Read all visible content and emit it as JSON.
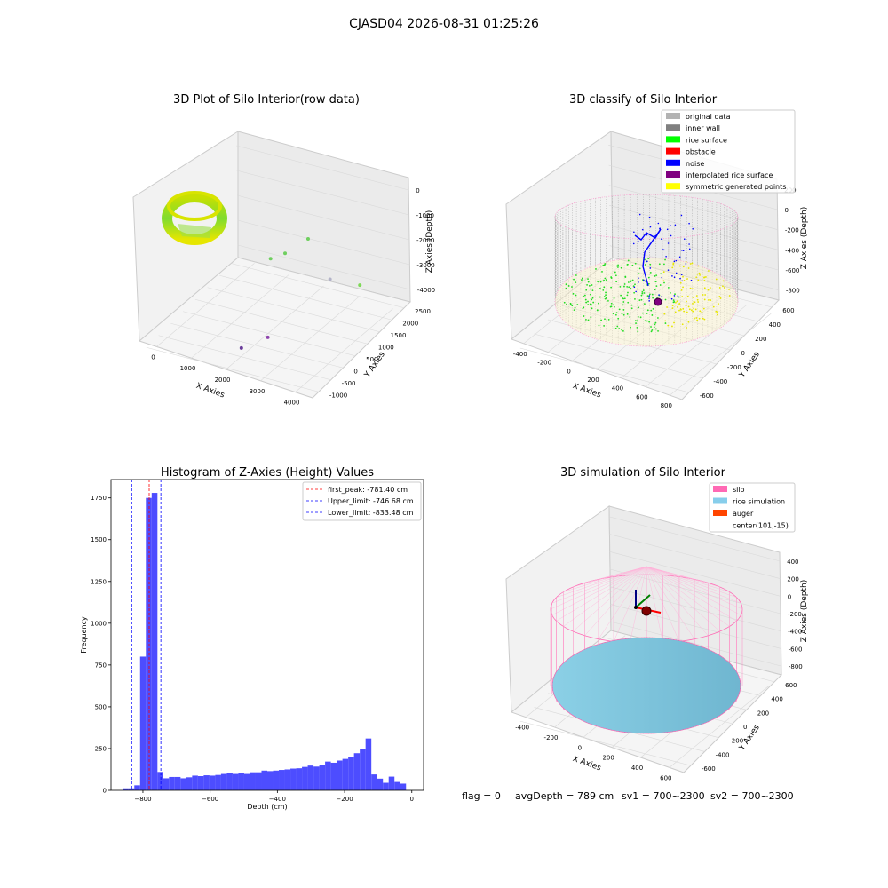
{
  "figure_title": "CJASD04 2026-08-31 01:25:26",
  "status_line": {
    "flag": "flag = 0",
    "avg_depth": "avgDepth = 789 cm",
    "sv1": "sv1 = 700~2300",
    "sv2": "sv2 = 700~2300"
  },
  "colors": {
    "bar": "#4d4dff",
    "first_peak": "#ff0000",
    "limits": "#0000ff",
    "original_data": "#b3b3b3",
    "inner_wall": "#808080",
    "rice_surface": "#00ff00",
    "obstacle": "#ff0000",
    "noise": "#0000ff",
    "interpolated_rice_surface": "#800080",
    "symmetric_generated_points": "#ffff00",
    "silo": "#ff69b4",
    "rice_simulation": "#87ceeb",
    "auger": "#ff4500"
  },
  "chart_data": [
    {
      "type": "scatter",
      "title": "3D Plot of Silo Interior(row data)",
      "xlabel": "X Axies",
      "ylabel": "Y Axies",
      "zlabel": "Z Axies (Depth)",
      "xticks": [
        "0",
        "1000",
        "2000",
        "3000",
        "4000"
      ],
      "yticks": [
        "-1000",
        "-500",
        "0",
        "500",
        "1000",
        "1500",
        "2000",
        "2500"
      ],
      "zticks": [
        "0",
        "-1000",
        "-2000",
        "-3000",
        "-4000"
      ],
      "xlim": [
        -700,
        4400
      ],
      "ylim": [
        -1100,
        2700
      ],
      "zlim": [
        -4500,
        300
      ],
      "points": [
        {
          "x": 1800,
          "y": 700,
          "z": -2000,
          "c": "#6fcf5f"
        },
        {
          "x": 2300,
          "y": 1500,
          "z": -1800,
          "c": "#6fcf5f"
        },
        {
          "x": 2000,
          "y": 1000,
          "z": -2000,
          "c": "#6fcf5f"
        },
        {
          "x": 3400,
          "y": 900,
          "z": -2300,
          "c": "#b3b3c8"
        },
        {
          "x": 3900,
          "y": 1400,
          "z": -2800,
          "c": "#7ed957"
        },
        {
          "x": 2400,
          "y": -200,
          "z": -3900,
          "c": "#8e44ad"
        },
        {
          "x": 2000,
          "y": -700,
          "z": -4000,
          "c": "#6a3d9a"
        }
      ]
    },
    {
      "type": "scatter",
      "title": "3D classify of Silo Interior",
      "xlabel": "X Axies",
      "ylabel": "Y Axies",
      "zlabel": "Z Axies (Depth)",
      "xticks": [
        "-400",
        "-200",
        "0",
        "200",
        "400",
        "600",
        "800"
      ],
      "yticks": [
        "-600",
        "-400",
        "-200",
        "0",
        "200",
        "400",
        "600"
      ],
      "zticks": [
        "200",
        "0",
        "-200",
        "-400",
        "-600",
        "-800"
      ],
      "legend": [
        {
          "label": "original data",
          "color": "#b3b3b3"
        },
        {
          "label": "inner wall",
          "color": "#808080"
        },
        {
          "label": "rice surface",
          "color": "#00ff00"
        },
        {
          "label": "obstacle",
          "color": "#ff0000"
        },
        {
          "label": "noise",
          "color": "#0000ff"
        },
        {
          "label": "interpolated rice surface",
          "color": "#800080"
        },
        {
          "label": "symmetric generated points",
          "color": "#ffff00"
        }
      ],
      "legend_position": "top-right"
    },
    {
      "type": "bar",
      "title": "Histogram of Z-Axies (Height) Values",
      "xlabel": "Depth (cm)",
      "ylabel": "Frequency",
      "xlim": [
        -895,
        35
      ],
      "ylim": [
        0,
        1860
      ],
      "xticks": [
        -800,
        -600,
        -400,
        -200,
        0
      ],
      "yticks": [
        0,
        250,
        500,
        750,
        1000,
        1250,
        1500,
        1750
      ],
      "bin_start": -860,
      "bin_width": 17.2,
      "values": [
        12,
        12,
        30,
        800,
        1750,
        1780,
        110,
        72,
        80,
        80,
        72,
        78,
        88,
        85,
        90,
        88,
        92,
        98,
        102,
        98,
        102,
        98,
        108,
        108,
        118,
        115,
        118,
        122,
        125,
        130,
        132,
        140,
        148,
        142,
        150,
        172,
        165,
        178,
        188,
        200,
        222,
        245,
        310,
        95,
        70,
        45,
        82,
        50,
        40
      ],
      "vlines": [
        {
          "label": "first_peak: -781.40 cm",
          "x": -781.4,
          "color": "#ff0000"
        },
        {
          "label": "Upper_limit: -746.68 cm",
          "x": -746.68,
          "color": "#0000ff"
        },
        {
          "label": "Lower_limit: -833.48 cm",
          "x": -833.48,
          "color": "#0000ff"
        }
      ],
      "legend_position": "top-right"
    },
    {
      "type": "scatter",
      "title": "3D simulation of Silo Interior",
      "xlabel": "X Axies",
      "ylabel": "Y Axies",
      "zlabel": "Z Axies (Depth)",
      "xticks": [
        "-400",
        "-200",
        "0",
        "200",
        "400",
        "600"
      ],
      "yticks": [
        "-600",
        "-400",
        "-200",
        "0",
        "200",
        "400",
        "600"
      ],
      "zticks": [
        "400",
        "200",
        "0",
        "-200",
        "-400",
        "-600",
        "-800"
      ],
      "legend": [
        {
          "label": "silo",
          "color": "#ff69b4"
        },
        {
          "label": "rice simulation",
          "color": "#87ceeb"
        },
        {
          "label": "auger",
          "color": "#ff4500"
        },
        {
          "label": "center(101,-15)",
          "color": ""
        }
      ],
      "legend_position": "top-right"
    }
  ]
}
